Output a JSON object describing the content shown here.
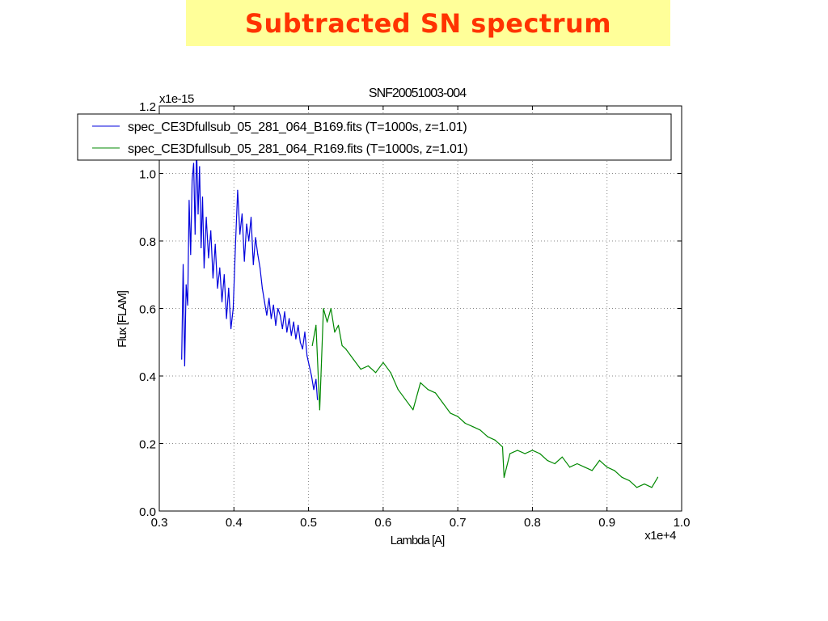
{
  "slide": {
    "title": "Subtracted SN spectrum"
  },
  "chart_data": {
    "type": "line",
    "title": "SNF20051003-004",
    "xlabel": "Lambda [A]",
    "ylabel": "Flux [FLAM]",
    "x_multiplier": "x1e+4",
    "y_multiplier": "x1e-15",
    "xlim": [
      0.3,
      1.0
    ],
    "ylim": [
      0.0,
      1.2
    ],
    "xticks": [
      "0.3",
      "0.4",
      "0.5",
      "0.6",
      "0.7",
      "0.8",
      "0.9",
      "1.0"
    ],
    "yticks": [
      "0.0",
      "0.2",
      "0.4",
      "0.6",
      "0.8",
      "1.0",
      "1.2"
    ],
    "grid": true,
    "legend_position": "top",
    "series": [
      {
        "name": "spec_CE3Dfullsub_05_281_064_B169.fits (T=1000s, z=1.01)",
        "color": "#0000dd",
        "x": [
          0.33,
          0.332,
          0.334,
          0.336,
          0.338,
          0.34,
          0.342,
          0.344,
          0.346,
          0.348,
          0.35,
          0.352,
          0.354,
          0.356,
          0.358,
          0.36,
          0.363,
          0.366,
          0.369,
          0.372,
          0.375,
          0.378,
          0.381,
          0.384,
          0.387,
          0.39,
          0.393,
          0.396,
          0.399,
          0.402,
          0.405,
          0.408,
          0.411,
          0.414,
          0.417,
          0.42,
          0.423,
          0.426,
          0.429,
          0.432,
          0.435,
          0.438,
          0.441,
          0.444,
          0.447,
          0.45,
          0.453,
          0.456,
          0.459,
          0.462,
          0.465,
          0.468,
          0.471,
          0.474,
          0.477,
          0.48,
          0.483,
          0.486,
          0.489,
          0.492,
          0.495,
          0.498,
          0.501,
          0.504,
          0.507,
          0.51,
          0.512
        ],
        "y": [
          0.45,
          0.73,
          0.43,
          0.67,
          0.61,
          0.92,
          0.76,
          0.98,
          1.03,
          0.82,
          1.08,
          0.88,
          1.02,
          0.78,
          0.93,
          0.72,
          0.87,
          0.75,
          0.83,
          0.69,
          0.79,
          0.66,
          0.72,
          0.62,
          0.7,
          0.57,
          0.66,
          0.54,
          0.6,
          0.78,
          0.95,
          0.82,
          0.88,
          0.74,
          0.85,
          0.8,
          0.87,
          0.73,
          0.81,
          0.76,
          0.72,
          0.66,
          0.62,
          0.58,
          0.63,
          0.57,
          0.61,
          0.55,
          0.6,
          0.58,
          0.54,
          0.59,
          0.53,
          0.57,
          0.52,
          0.56,
          0.51,
          0.55,
          0.5,
          0.48,
          0.53,
          0.46,
          0.43,
          0.4,
          0.36,
          0.39,
          0.33
        ]
      },
      {
        "name": "spec_CE3Dfullsub_05_281_064_R169.fits (T=1000s, z=1.01)",
        "color": "#008800",
        "x": [
          0.505,
          0.51,
          0.515,
          0.52,
          0.525,
          0.53,
          0.535,
          0.54,
          0.545,
          0.55,
          0.56,
          0.57,
          0.58,
          0.59,
          0.6,
          0.61,
          0.62,
          0.63,
          0.64,
          0.65,
          0.66,
          0.67,
          0.68,
          0.69,
          0.7,
          0.71,
          0.72,
          0.73,
          0.74,
          0.75,
          0.76,
          0.762,
          0.77,
          0.78,
          0.79,
          0.8,
          0.81,
          0.82,
          0.83,
          0.84,
          0.85,
          0.86,
          0.87,
          0.88,
          0.89,
          0.9,
          0.91,
          0.92,
          0.93,
          0.94,
          0.95,
          0.96,
          0.968
        ],
        "y": [
          0.49,
          0.55,
          0.3,
          0.6,
          0.56,
          0.6,
          0.53,
          0.55,
          0.49,
          0.48,
          0.45,
          0.42,
          0.43,
          0.41,
          0.44,
          0.41,
          0.36,
          0.33,
          0.3,
          0.38,
          0.36,
          0.35,
          0.32,
          0.29,
          0.28,
          0.26,
          0.25,
          0.24,
          0.22,
          0.21,
          0.19,
          0.1,
          0.17,
          0.18,
          0.17,
          0.18,
          0.17,
          0.15,
          0.14,
          0.16,
          0.13,
          0.14,
          0.13,
          0.12,
          0.15,
          0.13,
          0.12,
          0.1,
          0.09,
          0.07,
          0.08,
          0.07,
          0.1
        ]
      }
    ]
  }
}
